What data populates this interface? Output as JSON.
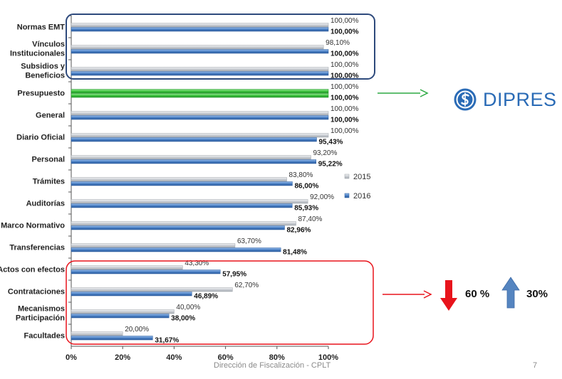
{
  "chart_data": {
    "type": "bar",
    "orientation": "horizontal",
    "categories": [
      "Normas EMT",
      "Vínculos Institucionales",
      "Subsidios y Beneficios",
      "Presupuesto",
      "General",
      "Diario Oficial",
      "Personal",
      "Trámites",
      "Auditorías",
      "Marco Normativo",
      "Transferencias",
      "Actos con efectos",
      "Contrataciones",
      "Mecanismos Participación",
      "Facultades"
    ],
    "category_lines": [
      [
        "Normas EMT"
      ],
      [
        "Vínculos",
        "Institucionales"
      ],
      [
        "Subsidios y",
        "Beneficios"
      ],
      [
        "Presupuesto"
      ],
      [
        "General"
      ],
      [
        "Diario Oficial"
      ],
      [
        "Personal"
      ],
      [
        "Trámites"
      ],
      [
        "Auditorías"
      ],
      [
        "Marco Normativo"
      ],
      [
        "Transferencias"
      ],
      [
        "Actos con efectos"
      ],
      [
        "Contrataciones"
      ],
      [
        "Mecanismos",
        "Participación"
      ],
      [
        "Facultades"
      ]
    ],
    "series": [
      {
        "name": "2015",
        "values": [
          100,
          98.1,
          100,
          100,
          100,
          100,
          93.2,
          83.8,
          92,
          87.4,
          63.7,
          43.3,
          62.7,
          40,
          20
        ],
        "labels": [
          "100,00%",
          "98,10%",
          "100,00%",
          "100,00%",
          "100,00%",
          "100,00%",
          "93,20%",
          "83,80%",
          "92,00%",
          "87,40%",
          "63,70%",
          "43,30%",
          "62,70%",
          "40,00%",
          "20,00%"
        ]
      },
      {
        "name": "2016",
        "values": [
          100,
          100,
          100,
          100,
          100,
          95.43,
          95.22,
          86,
          85.93,
          82.96,
          81.48,
          57.95,
          46.89,
          38,
          31.67
        ],
        "labels": [
          "100,00%",
          "100,00%",
          "100,00%",
          "100,00%",
          "100,00%",
          "95,43%",
          "95,22%",
          "86,00%",
          "85,93%",
          "82,96%",
          "81,48%",
          "57,95%",
          "46,89%",
          "38,00%",
          "31,67%"
        ]
      }
    ],
    "xlim": [
      0,
      100
    ],
    "xticks": [
      "0%",
      "20%",
      "40%",
      "60%",
      "80%",
      "100%"
    ],
    "highlight_category": "Presupuesto",
    "legend": "right-middle",
    "grid": false,
    "title": "",
    "xlabel": "",
    "ylabel": ""
  },
  "colors": {
    "bar_2015": "#c9cdd2",
    "bar_2016": "#4a7fc4",
    "highlight": "#3ec33e",
    "top_box": "#2e4a7c",
    "bottom_box": "#e8141c",
    "green_arrow": "#2eaa44",
    "red_arrow": "#e8141c",
    "up_arrow": "#5585c0",
    "down_arrow": "#e8141c"
  },
  "annotations": {
    "logo_text": "DIPRES",
    "down_pct": "60 %",
    "up_pct": "30%"
  },
  "footer": {
    "text": "Dirección de Fiscalización  - CPLT",
    "page": "7"
  }
}
